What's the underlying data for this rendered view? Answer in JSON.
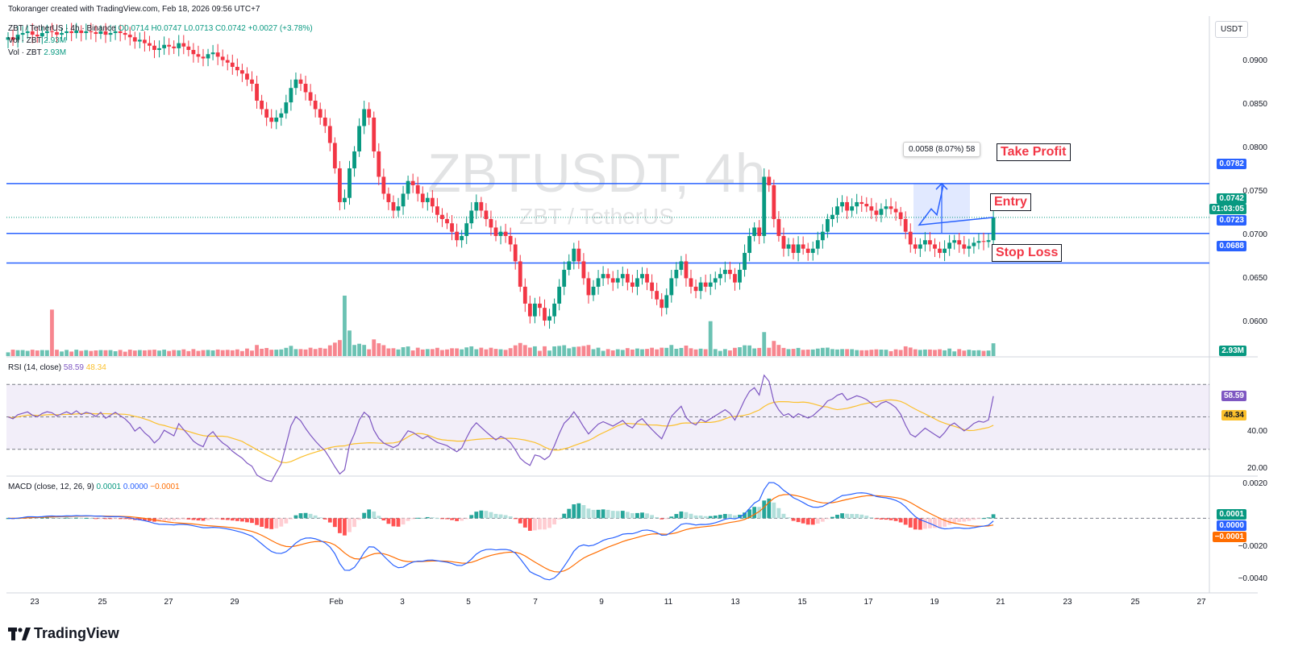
{
  "header": {
    "creator": "Tokoranger created with TradingView.com, Feb 18, 2026 09:56 UTC+7",
    "symbol_line": "ZBT / TetherUS · 4h · Binance",
    "ohlc": "O0.0714 H0.0747 L0.0713 C0.0742 +0.0027 (+3.78%)",
    "vol1": "Vol · ZBT",
    "vol1_val": "2.93M",
    "vol2": "Vol · ZBT",
    "vol2_val": "2.93M"
  },
  "watermark": {
    "title": "ZBTUSDT, 4h",
    "subtitle": "ZBT / TetherUS"
  },
  "currency": "USDT",
  "price_axis": [
    "0.0900",
    "0.0850",
    "0.0800",
    "0.0750",
    "0.0700",
    "0.0650",
    "0.0600"
  ],
  "levels": {
    "take_profit": {
      "label": "Take Profit",
      "value": "0.0782"
    },
    "entry": {
      "label": "Entry",
      "value": "0.0723"
    },
    "stop_loss": {
      "label": "Stop Loss",
      "value": "0.0688"
    },
    "last_price": "0.0742",
    "countdown": "01:03:05",
    "volume": "2.93M"
  },
  "measure_label": "0.0058 (8.07%) 58",
  "rsi": {
    "title": "RSI (14, close)",
    "value": "58.59",
    "ma": "48.34",
    "axis": [
      "40.00",
      "20.00"
    ],
    "colors": {
      "rsi": "#7e57c2",
      "ma": "#fbc02d"
    }
  },
  "macd": {
    "title": "MACD (close, 12, 26, 9)",
    "hist": "0.0001",
    "macd": "0.0000",
    "signal": "−0.0001",
    "axis": [
      "0.0020",
      "−0.0020",
      "−0.0040"
    ],
    "colors": {
      "macd": "#2962ff",
      "signal": "#ff6d00"
    }
  },
  "date_axis": [
    "23",
    "25",
    "27",
    "29",
    "Feb",
    "3",
    "5",
    "7",
    "9",
    "11",
    "13",
    "15",
    "17",
    "19",
    "21",
    "23",
    "25",
    "27"
  ],
  "brand": "TradingView",
  "colors": {
    "up": "#089981",
    "down": "#f23645",
    "level_line": "#2962ff"
  },
  "chart_data": {
    "type": "candlestick",
    "symbol": "ZBTUSDT",
    "timeframe": "4h",
    "exchange": "Binance",
    "start_date": "2026-01-22",
    "ylim": [
      0.0578,
      0.098
    ],
    "closes": [
      0.0955,
      0.0952,
      0.0958,
      0.096,
      0.0962,
      0.0958,
      0.0956,
      0.096,
      0.0962,
      0.0961,
      0.0958,
      0.096,
      0.0962,
      0.096,
      0.0963,
      0.096,
      0.0962,
      0.0961,
      0.0959,
      0.0962,
      0.0958,
      0.096,
      0.0962,
      0.096,
      0.0958,
      0.0955,
      0.095,
      0.0952,
      0.0948,
      0.0945,
      0.094,
      0.0942,
      0.0946,
      0.0944,
      0.0942,
      0.0948,
      0.0944,
      0.094,
      0.0935,
      0.0932,
      0.093,
      0.0935,
      0.0937,
      0.0932,
      0.0928,
      0.0925,
      0.092,
      0.0916,
      0.0912,
      0.0905,
      0.09,
      0.088,
      0.087,
      0.086,
      0.0855,
      0.086,
      0.0865,
      0.0878,
      0.0895,
      0.0905,
      0.09,
      0.089,
      0.088,
      0.087,
      0.086,
      0.085,
      0.083,
      0.08,
      0.076,
      0.0765,
      0.08,
      0.082,
      0.085,
      0.087,
      0.086,
      0.082,
      0.079,
      0.077,
      0.076,
      0.075,
      0.0755,
      0.077,
      0.0785,
      0.078,
      0.077,
      0.076,
      0.0765,
      0.0755,
      0.0745,
      0.074,
      0.0735,
      0.0725,
      0.0715,
      0.072,
      0.0735,
      0.075,
      0.076,
      0.075,
      0.074,
      0.073,
      0.072,
      0.0725,
      0.072,
      0.071,
      0.069,
      0.066,
      0.064,
      0.0625,
      0.064,
      0.0635,
      0.062,
      0.0625,
      0.064,
      0.066,
      0.068,
      0.069,
      0.0705,
      0.069,
      0.067,
      0.065,
      0.066,
      0.067,
      0.0675,
      0.067,
      0.0665,
      0.067,
      0.0675,
      0.0665,
      0.066,
      0.067,
      0.0675,
      0.0665,
      0.0655,
      0.0645,
      0.0635,
      0.065,
      0.067,
      0.068,
      0.069,
      0.067,
      0.066,
      0.0655,
      0.0665,
      0.066,
      0.0665,
      0.067,
      0.0675,
      0.068,
      0.0675,
      0.0665,
      0.068,
      0.07,
      0.072,
      0.073,
      0.072,
      0.079,
      0.078,
      0.074,
      0.072,
      0.0705,
      0.071,
      0.07,
      0.071,
      0.0705,
      0.07,
      0.0705,
      0.0715,
      0.0725,
      0.074,
      0.0745,
      0.0755,
      0.076,
      0.075,
      0.0755,
      0.076,
      0.0758,
      0.0755,
      0.075,
      0.0745,
      0.0752,
      0.0755,
      0.0752,
      0.0748,
      0.074,
      0.0725,
      0.071,
      0.0705,
      0.071,
      0.0715,
      0.071,
      0.0705,
      0.07,
      0.0705,
      0.0712,
      0.0715,
      0.071,
      0.0705,
      0.0708,
      0.0712,
      0.0714,
      0.0713,
      0.0715,
      0.0742
    ]
  }
}
